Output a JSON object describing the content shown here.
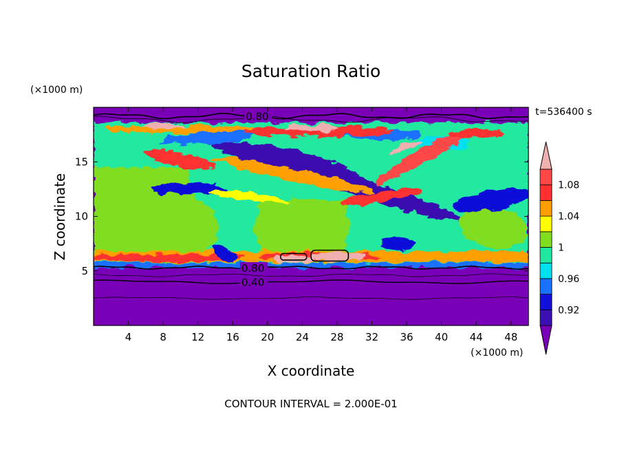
{
  "chart_data": {
    "type": "heatmap",
    "title": "Saturation Ratio",
    "xlabel": "X coordinate",
    "ylabel": "Z coordinate",
    "x_unit": "(×1000 m)",
    "y_unit": "(×1000 m)",
    "time_label": "t=536400 s",
    "footer": "CONTOUR INTERVAL = 2.000E-01",
    "xlim": [
      0,
      50
    ],
    "ylim": [
      0,
      20
    ],
    "x_ticks": [
      "4",
      "8",
      "12",
      "16",
      "20",
      "24",
      "28",
      "32",
      "36",
      "40",
      "44",
      "48"
    ],
    "y_ticks": [
      "5",
      "10",
      "15"
    ],
    "colorbar": {
      "levels": [
        0.9,
        0.92,
        0.94,
        0.96,
        0.98,
        1.0,
        1.02,
        1.04,
        1.06,
        1.08,
        1.1
      ],
      "tick_labels": [
        "0.92",
        "0.96",
        "1",
        "1.04",
        "1.08"
      ],
      "colors": [
        "#7a00b8",
        "#3a10b0",
        "#1010d8",
        "#1a70ff",
        "#00e0f0",
        "#20e8a0",
        "#80dd20",
        "#ffff00",
        "#ffa000",
        "#ff3030",
        "#ff4848",
        "#f0b0b0"
      ]
    },
    "contour_labels": [
      "0.80",
      "0.80",
      "0.40"
    ]
  }
}
